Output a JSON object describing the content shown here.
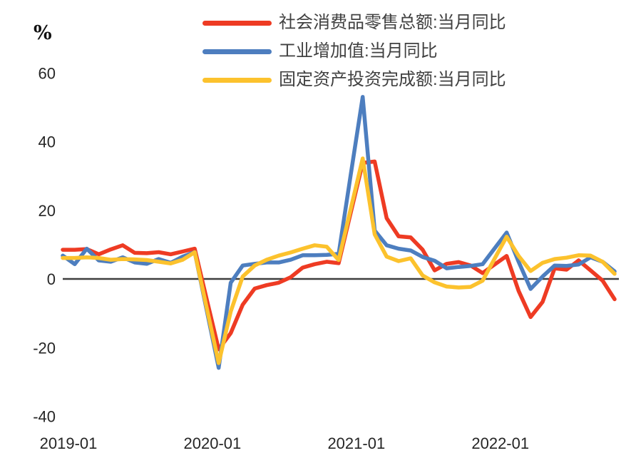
{
  "figure": {
    "background": "#ffffff",
    "axis_color": "#3f3f3f",
    "tick_color": "#262626",
    "legend_text_color": "#404040"
  },
  "legend": {
    "items": [
      {
        "label": "社会消费品零售总额:当月同比",
        "color": "#ee3b23"
      },
      {
        "label": "工业增加值:当月同比",
        "color": "#4d7ebf"
      },
      {
        "label": "固定资产投资完成额:当月同比",
        "color": "#fcc22d"
      }
    ]
  },
  "chart_data": {
    "type": "line",
    "title": "",
    "xlabel": "",
    "ylabel": "%",
    "ylim": [
      -40,
      60
    ],
    "grid": false,
    "legend_position": "top",
    "y_ticks": [
      60,
      40,
      20,
      0,
      -20,
      -40
    ],
    "x_tick_labels": [
      "2019-01",
      "2020-01",
      "2021-01",
      "2022-01"
    ],
    "x": [
      "2019-01",
      "2019-02",
      "2019-03",
      "2019-04",
      "2019-05",
      "2019-06",
      "2019-07",
      "2019-08",
      "2019-09",
      "2019-10",
      "2019-11",
      "2019-12",
      "2020-01",
      "2020-02",
      "2020-03",
      "2020-04",
      "2020-05",
      "2020-06",
      "2020-07",
      "2020-08",
      "2020-09",
      "2020-10",
      "2020-11",
      "2020-12",
      "2021-01",
      "2021-02",
      "2021-03",
      "2021-04",
      "2021-05",
      "2021-06",
      "2021-07",
      "2021-08",
      "2021-09",
      "2021-10",
      "2021-11",
      "2021-12",
      "2022-01",
      "2022-02",
      "2022-03",
      "2022-04",
      "2022-05",
      "2022-06",
      "2022-07",
      "2022-08",
      "2022-09",
      "2022-10",
      "2022-11"
    ],
    "series": [
      {
        "name": "社会消费品零售总额:当月同比",
        "color": "#ee3b23",
        "values": [
          8.5,
          8.5,
          8.7,
          7.2,
          8.6,
          9.8,
          7.6,
          7.5,
          7.8,
          7.2,
          8.0,
          8.8,
          -5.9,
          -20.5,
          -15.8,
          -7.5,
          -2.8,
          -1.8,
          -1.1,
          0.5,
          3.3,
          4.3,
          5.0,
          4.6,
          19.2,
          33.8,
          34.2,
          17.7,
          12.4,
          12.1,
          8.5,
          2.5,
          4.4,
          4.9,
          3.9,
          1.7,
          4.2,
          6.7,
          -3.5,
          -11.1,
          -6.7,
          3.1,
          2.7,
          5.4,
          2.5,
          -0.5,
          -5.9
        ]
      },
      {
        "name": "工业增加值:当月同比",
        "color": "#4d7ebf",
        "values": [
          6.8,
          4.3,
          8.8,
          5.4,
          5.0,
          6.3,
          4.8,
          4.4,
          5.8,
          4.7,
          6.5,
          7.8,
          -9.1,
          -25.9,
          -1.1,
          3.9,
          4.4,
          4.8,
          4.8,
          5.6,
          6.9,
          6.9,
          7.0,
          7.3,
          30.2,
          53.0,
          14.1,
          9.8,
          8.8,
          8.3,
          6.4,
          5.3,
          3.1,
          3.5,
          3.8,
          4.3,
          8.9,
          13.5,
          5.0,
          -2.9,
          0.7,
          3.9,
          3.8,
          4.2,
          6.3,
          5.0,
          2.2
        ]
      },
      {
        "name": "固定资产投资完成额:当月同比",
        "color": "#fcc22d",
        "values": [
          6.1,
          6.1,
          6.3,
          6.1,
          5.6,
          5.8,
          5.7,
          5.5,
          5.0,
          4.5,
          5.6,
          7.8,
          -8.4,
          -24.5,
          -9.5,
          0.7,
          3.9,
          5.6,
          6.8,
          7.7,
          8.8,
          9.8,
          9.4,
          5.5,
          20.3,
          35.1,
          13.0,
          6.5,
          5.2,
          6.0,
          1.0,
          -1.0,
          -2.2,
          -2.5,
          -2.3,
          -0.5,
          5.9,
          12.3,
          6.7,
          2.3,
          4.7,
          5.8,
          6.2,
          6.9,
          6.8,
          5.0,
          1.5
        ]
      }
    ]
  }
}
